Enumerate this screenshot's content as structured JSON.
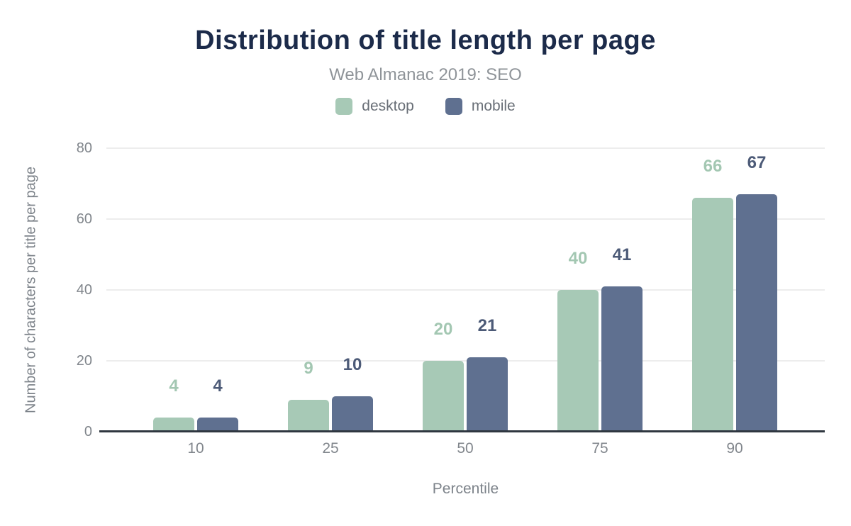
{
  "chart_data": {
    "type": "bar",
    "title": "Distribution of title length per page",
    "subtitle": "Web Almanac 2019: SEO",
    "xlabel": "Percentile",
    "ylabel": "Number of characters per title per page",
    "categories": [
      "10",
      "25",
      "50",
      "75",
      "90"
    ],
    "series": [
      {
        "name": "desktop",
        "color": "#a7c9b6",
        "label_color": "#a3c7b2",
        "values": [
          4,
          9,
          20,
          40,
          66
        ]
      },
      {
        "name": "mobile",
        "color": "#5f7090",
        "label_color": "#4c5a77",
        "values": [
          4,
          10,
          21,
          41,
          67
        ]
      }
    ],
    "ylim": [
      0,
      80
    ],
    "yticks": [
      0,
      20,
      40,
      60,
      80
    ],
    "grid": "horizontal",
    "legend_position": "top",
    "data_labels": true
  },
  "colors": {
    "title": "#1c2b4a",
    "subtitle": "#8f9499",
    "legend_text": "#696f77",
    "tick_label": "#81868c",
    "axis_title": "#7d838a",
    "gridline": "#ededed",
    "axis_line": "#2f3740",
    "background": "#ffffff"
  }
}
